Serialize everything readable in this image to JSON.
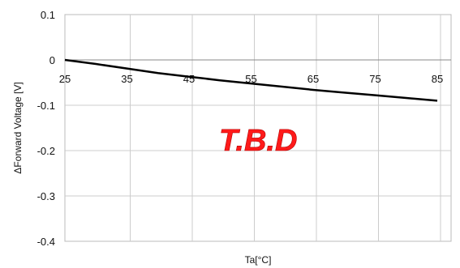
{
  "chart_data": {
    "type": "line",
    "title": "",
    "xlabel": "Ta[°C]",
    "ylabel": "ΔForward Voltage [V]",
    "xlim": [
      25,
      85
    ],
    "ylim": [
      -0.4,
      0.1
    ],
    "grid": true,
    "x_ticks": [
      "25",
      "35",
      "45",
      "55",
      "65",
      "75",
      "85"
    ],
    "x_tick_values": [
      25,
      35,
      45,
      55,
      65,
      75,
      85
    ],
    "y_ticks": [
      "0.1",
      "0",
      "-0.1",
      "-0.2",
      "-0.3",
      "-0.4"
    ],
    "y_tick_values": [
      0.1,
      0,
      -0.1,
      -0.2,
      -0.3,
      -0.4
    ],
    "series": [
      {
        "x": [
          25,
          30,
          35,
          40,
          45,
          50,
          55,
          60,
          65,
          70,
          75,
          80,
          85
        ],
        "values": [
          0,
          -0.009,
          -0.019,
          -0.029,
          -0.037,
          -0.045,
          -0.052,
          -0.059,
          -0.066,
          -0.072,
          -0.078,
          -0.084,
          -0.09
        ]
      }
    ],
    "annotation": "T.B.D",
    "line_color": "#000000",
    "annotation_color": "#ff1a1a",
    "grid_color": "#cccccc"
  }
}
